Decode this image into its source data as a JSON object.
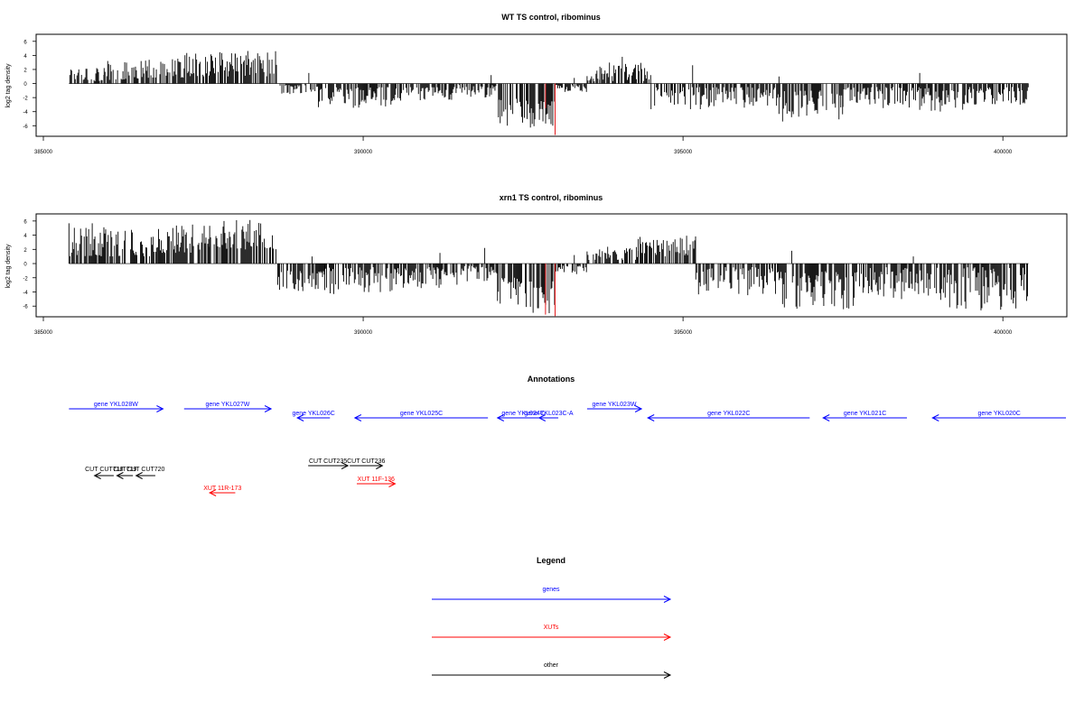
{
  "chart_data": [
    {
      "type": "bar",
      "title": "WT TS control, ribominus",
      "xlabel": "",
      "ylabel": "log2 tag density",
      "xlim": [
        385000,
        401000
      ],
      "ylim": [
        -7.5,
        7
      ],
      "xticks": [
        385000,
        390000,
        395000,
        400000
      ],
      "yticks": [
        -6,
        -4,
        -2,
        0,
        2,
        4,
        6
      ],
      "grid": false,
      "bar_color": "#000000",
      "highlight_color": "#e31a1c",
      "segments": [
        {
          "start": 385400,
          "end": 385950,
          "min": 0.3,
          "max": 3.0,
          "sign": 1
        },
        {
          "start": 385950,
          "end": 386500,
          "min": 0.5,
          "max": 3.3,
          "sign": 1
        },
        {
          "start": 386500,
          "end": 387200,
          "min": 0.8,
          "max": 3.6,
          "sign": 1
        },
        {
          "start": 387200,
          "end": 388000,
          "min": 1.0,
          "max": 4.5,
          "sign": 1
        },
        {
          "start": 388000,
          "end": 388650,
          "min": 1.0,
          "max": 4.8,
          "sign": 1
        },
        {
          "start": 388700,
          "end": 389300,
          "min": 0.2,
          "max": 1.5,
          "sign": -1
        },
        {
          "start": 389300,
          "end": 390500,
          "min": 0.5,
          "max": 3.5,
          "sign": -1
        },
        {
          "start": 390500,
          "end": 391500,
          "min": 0.5,
          "max": 2.5,
          "sign": -1
        },
        {
          "start": 391500,
          "end": 392100,
          "min": 0.2,
          "max": 2.0,
          "sign": -1
        },
        {
          "start": 392100,
          "end": 392600,
          "min": 2.0,
          "max": 6.0,
          "sign": -1
        },
        {
          "start": 392600,
          "end": 393000,
          "min": 2.5,
          "max": 7.0,
          "sign": -1
        },
        {
          "start": 393000,
          "end": 393500,
          "min": 0.2,
          "max": 1.2,
          "sign": -1
        },
        {
          "start": 393500,
          "end": 394500,
          "min": 0.3,
          "max": 3.0,
          "sign": 1
        },
        {
          "start": 394500,
          "end": 395300,
          "min": 0.5,
          "max": 3.8,
          "sign": -1
        },
        {
          "start": 395300,
          "end": 396500,
          "min": 0.5,
          "max": 3.5,
          "sign": -1
        },
        {
          "start": 396500,
          "end": 397500,
          "min": 1.0,
          "max": 5.5,
          "sign": -1
        },
        {
          "start": 397500,
          "end": 398700,
          "min": 0.5,
          "max": 3.5,
          "sign": -1
        },
        {
          "start": 398700,
          "end": 399500,
          "min": 0.5,
          "max": 4.0,
          "sign": -1
        },
        {
          "start": 399500,
          "end": 400400,
          "min": 0.5,
          "max": 3.0,
          "sign": -1
        }
      ],
      "upward_spikes": [
        {
          "x": 389150,
          "y": 1.5
        },
        {
          "x": 392000,
          "y": 1.2
        },
        {
          "x": 393300,
          "y": 0.8
        },
        {
          "x": 393700,
          "y": 2.4
        },
        {
          "x": 394050,
          "y": 3.8
        },
        {
          "x": 394400,
          "y": 2.2
        },
        {
          "x": 395150,
          "y": 2.6
        },
        {
          "x": 396500,
          "y": 1.0
        },
        {
          "x": 398700,
          "y": 1.5
        }
      ],
      "highlight_bars": [
        {
          "x": 392850,
          "y": -3.5
        },
        {
          "x": 393000,
          "y": -7.3
        }
      ]
    },
    {
      "type": "bar",
      "title": "xrn1 TS control, ribominus",
      "xlabel": "",
      "ylabel": "log2 tag density",
      "xlim": [
        385000,
        401000
      ],
      "ylim": [
        -7.5,
        7
      ],
      "xticks": [
        385000,
        390000,
        395000,
        400000
      ],
      "yticks": [
        -6,
        -4,
        -2,
        0,
        2,
        4,
        6
      ],
      "grid": false,
      "bar_color": "#000000",
      "highlight_color": "#e31a1c",
      "segments": [
        {
          "start": 385400,
          "end": 386000,
          "min": 1.0,
          "max": 5.8,
          "sign": 1
        },
        {
          "start": 386000,
          "end": 386800,
          "min": 1.0,
          "max": 5.0,
          "sign": 1
        },
        {
          "start": 386800,
          "end": 387600,
          "min": 1.5,
          "max": 5.5,
          "sign": 1
        },
        {
          "start": 387600,
          "end": 388650,
          "min": 2.0,
          "max": 6.2,
          "sign": 1
        },
        {
          "start": 388650,
          "end": 389400,
          "min": 1.0,
          "max": 4.0,
          "sign": -1
        },
        {
          "start": 389400,
          "end": 390500,
          "min": 0.5,
          "max": 4.5,
          "sign": -1
        },
        {
          "start": 390500,
          "end": 391500,
          "min": 0.5,
          "max": 3.5,
          "sign": -1
        },
        {
          "start": 391500,
          "end": 392100,
          "min": 0.3,
          "max": 2.5,
          "sign": -1
        },
        {
          "start": 392100,
          "end": 392600,
          "min": 2.0,
          "max": 6.5,
          "sign": -1
        },
        {
          "start": 392600,
          "end": 393000,
          "min": 2.5,
          "max": 7.2,
          "sign": -1
        },
        {
          "start": 393000,
          "end": 393500,
          "min": 0.3,
          "max": 1.5,
          "sign": -1
        },
        {
          "start": 393500,
          "end": 394300,
          "min": 0.5,
          "max": 2.5,
          "sign": 1
        },
        {
          "start": 394300,
          "end": 395200,
          "min": 1.0,
          "max": 4.0,
          "sign": 1
        },
        {
          "start": 395200,
          "end": 396500,
          "min": 0.5,
          "max": 4.5,
          "sign": -1
        },
        {
          "start": 396500,
          "end": 397800,
          "min": 1.0,
          "max": 6.5,
          "sign": -1
        },
        {
          "start": 397800,
          "end": 399000,
          "min": 0.5,
          "max": 5.0,
          "sign": -1
        },
        {
          "start": 399000,
          "end": 400400,
          "min": 0.5,
          "max": 6.8,
          "sign": -1
        }
      ],
      "upward_spikes": [
        {
          "x": 389200,
          "y": 1.0
        },
        {
          "x": 391200,
          "y": 1.5
        },
        {
          "x": 391900,
          "y": 2.2
        },
        {
          "x": 393300,
          "y": 1.2
        },
        {
          "x": 396700,
          "y": 1.8
        },
        {
          "x": 398600,
          "y": 1.0
        }
      ],
      "highlight_bars": [
        {
          "x": 392850,
          "y": -7.2
        },
        {
          "x": 393000,
          "y": -7.4
        }
      ]
    }
  ],
  "annotations": {
    "title": "Annotations",
    "genes": [
      {
        "label": "gene YKL028W",
        "from": 385400,
        "to": 386870,
        "row": 0
      },
      {
        "label": "gene YKL027W",
        "from": 387200,
        "to": 388560,
        "row": 0
      },
      {
        "label": "gene YKL026C",
        "from": 389480,
        "to": 388970,
        "row": 1
      },
      {
        "label": "gene YKL025C",
        "from": 391950,
        "to": 389870,
        "row": 1
      },
      {
        "label": "gene YKL024C",
        "from": 392900,
        "to": 392100,
        "row": 1
      },
      {
        "label": "gene YKL023C-A",
        "from": 393050,
        "to": 392750,
        "row": 1
      },
      {
        "label": "gene YKL023W",
        "from": 393500,
        "to": 394350,
        "row": 0
      },
      {
        "label": "gene YKL022C",
        "from": 396980,
        "to": 394450,
        "row": 1
      },
      {
        "label": "gene YKL021C",
        "from": 398500,
        "to": 397190,
        "row": 1
      },
      {
        "label": "gene YKL020C",
        "from": 401000,
        "to": 398900,
        "row": 1
      }
    ],
    "cuts": [
      {
        "label": "CUT CUT718",
        "from": 386100,
        "to": 385800
      },
      {
        "label": "CUT719",
        "from": 386400,
        "to": 386150
      },
      {
        "label": "CUT CUT720",
        "from": 386750,
        "to": 386450
      },
      {
        "label": "CUT CUT235",
        "from": 389140,
        "to": 389760
      },
      {
        "label": "CUT CUT236",
        "from": 389790,
        "to": 390300
      }
    ],
    "xuts": [
      {
        "label": "XUT 11R-173",
        "from": 388000,
        "to": 387600,
        "row": 1
      },
      {
        "label": "XUT 11F-136",
        "from": 389900,
        "to": 390500,
        "row": 0
      }
    ]
  },
  "legend": {
    "title": "Legend",
    "items": [
      {
        "label": "genes",
        "color": "#0000ff"
      },
      {
        "label": "XUTs",
        "color": "#ff0000"
      },
      {
        "label": "other",
        "color": "#000000"
      }
    ]
  },
  "colors": {
    "gene": "#0000ff",
    "xut": "#ff0000",
    "cut": "#000000",
    "axis": "#000000"
  }
}
